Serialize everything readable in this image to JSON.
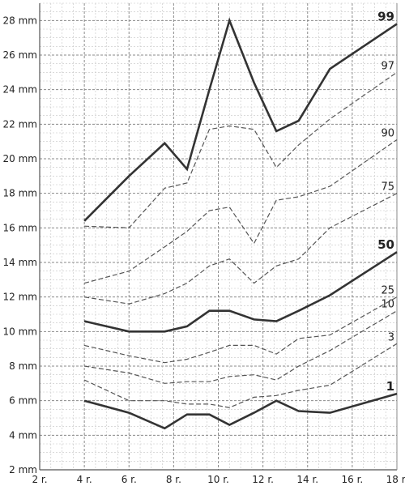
{
  "chart_data": {
    "type": "line",
    "xlim": [
      2,
      18
    ],
    "ylim": [
      2,
      29
    ],
    "x_ticks": [
      {
        "value": 2,
        "label": "2 r."
      },
      {
        "value": 4,
        "label": "4 r."
      },
      {
        "value": 6,
        "label": "6 r."
      },
      {
        "value": 8,
        "label": "8 r."
      },
      {
        "value": 10,
        "label": "10 r."
      },
      {
        "value": 12,
        "label": "12 r."
      },
      {
        "value": 14,
        "label": "14 r."
      },
      {
        "value": 16,
        "label": "16 r."
      },
      {
        "value": 18,
        "label": "18 r."
      }
    ],
    "y_ticks": [
      {
        "value": 2,
        "label": "2 mm"
      },
      {
        "value": 4,
        "label": "4 mm"
      },
      {
        "value": 6,
        "label": "6 mm"
      },
      {
        "value": 8,
        "label": "8 mm"
      },
      {
        "value": 10,
        "label": "10 mm"
      },
      {
        "value": 12,
        "label": "12 mm"
      },
      {
        "value": 14,
        "label": "14 mm"
      },
      {
        "value": 16,
        "label": "16 mm"
      },
      {
        "value": 18,
        "label": "18 mm"
      },
      {
        "value": 20,
        "label": "20 mm"
      },
      {
        "value": 22,
        "label": "22 mm"
      },
      {
        "value": 24,
        "label": "24 mm"
      },
      {
        "value": 26,
        "label": "26 mm"
      },
      {
        "value": 28,
        "label": "28 mm"
      }
    ],
    "grid": true,
    "series": [
      {
        "name": "99",
        "style": "solid-bold",
        "color": "#333333",
        "x": [
          4,
          6,
          7.6,
          8.6,
          9.6,
          10.5,
          11.6,
          12.6,
          13.6,
          15,
          18
        ],
        "y": [
          16.4,
          19,
          20.9,
          19.4,
          24,
          28,
          24.4,
          21.6,
          22.2,
          25.2,
          27.8
        ]
      },
      {
        "name": "97",
        "style": "dashed",
        "color": "#555555",
        "x": [
          4,
          6,
          7.6,
          8.6,
          9.6,
          10.5,
          11.6,
          12.6,
          13.6,
          15,
          18
        ],
        "y": [
          16.1,
          16,
          18.3,
          18.6,
          21.7,
          21.9,
          21.7,
          19.5,
          20.8,
          22.3,
          25
        ]
      },
      {
        "name": "90",
        "style": "dashed",
        "color": "#555555",
        "x": [
          4,
          6,
          7.6,
          8.6,
          9.6,
          10.5,
          11.6,
          12.6,
          13.6,
          15,
          18
        ],
        "y": [
          12.8,
          13.5,
          14.9,
          15.8,
          17,
          17.2,
          15.1,
          17.6,
          17.8,
          18.4,
          21.1
        ]
      },
      {
        "name": "75",
        "style": "dashed",
        "color": "#555555",
        "x": [
          4,
          6,
          7.6,
          8.6,
          9.6,
          10.5,
          11.6,
          12.6,
          13.6,
          15,
          18
        ],
        "y": [
          12,
          11.6,
          12.2,
          12.8,
          13.8,
          14.2,
          12.8,
          13.8,
          14.2,
          16,
          18
        ]
      },
      {
        "name": "50",
        "style": "solid-bold",
        "color": "#333333",
        "x": [
          4,
          6,
          7.6,
          8.6,
          9.6,
          10.5,
          11.6,
          12.6,
          13.6,
          15,
          18
        ],
        "y": [
          10.6,
          10,
          10,
          10.3,
          11.2,
          11.2,
          10.7,
          10.6,
          11.2,
          12.1,
          14.6
        ]
      },
      {
        "name": "25",
        "style": "dashed",
        "color": "#555555",
        "x": [
          4,
          6,
          7.6,
          8.6,
          9.6,
          10.5,
          11.6,
          12.6,
          13.6,
          15,
          18
        ],
        "y": [
          9.2,
          8.6,
          8.2,
          8.4,
          8.8,
          9.2,
          9.2,
          8.7,
          9.6,
          9.8,
          12
        ]
      },
      {
        "name": "10",
        "style": "dashed",
        "color": "#555555",
        "x": [
          4,
          6,
          7.6,
          8.6,
          9.6,
          10.5,
          11.6,
          12.6,
          13.6,
          15,
          18
        ],
        "y": [
          8,
          7.6,
          7,
          7.1,
          7.1,
          7.4,
          7.5,
          7.2,
          8,
          8.9,
          11.2
        ]
      },
      {
        "name": "3",
        "style": "dashed",
        "color": "#555555",
        "x": [
          4,
          6,
          7.6,
          8.6,
          9.6,
          10.5,
          11.6,
          12.6,
          13.6,
          15,
          18
        ],
        "y": [
          7.2,
          6,
          6,
          5.8,
          5.8,
          5.6,
          6.2,
          6.3,
          6.6,
          6.9,
          9.3
        ]
      },
      {
        "name": "1",
        "style": "solid-bold",
        "color": "#333333",
        "x": [
          4,
          6,
          7.6,
          8.6,
          9.6,
          10.5,
          11.6,
          12.6,
          13.6,
          15,
          18
        ],
        "y": [
          6,
          5.3,
          4.4,
          5.2,
          5.2,
          4.6,
          5.3,
          6,
          5.4,
          5.3,
          6.4
        ]
      }
    ]
  }
}
